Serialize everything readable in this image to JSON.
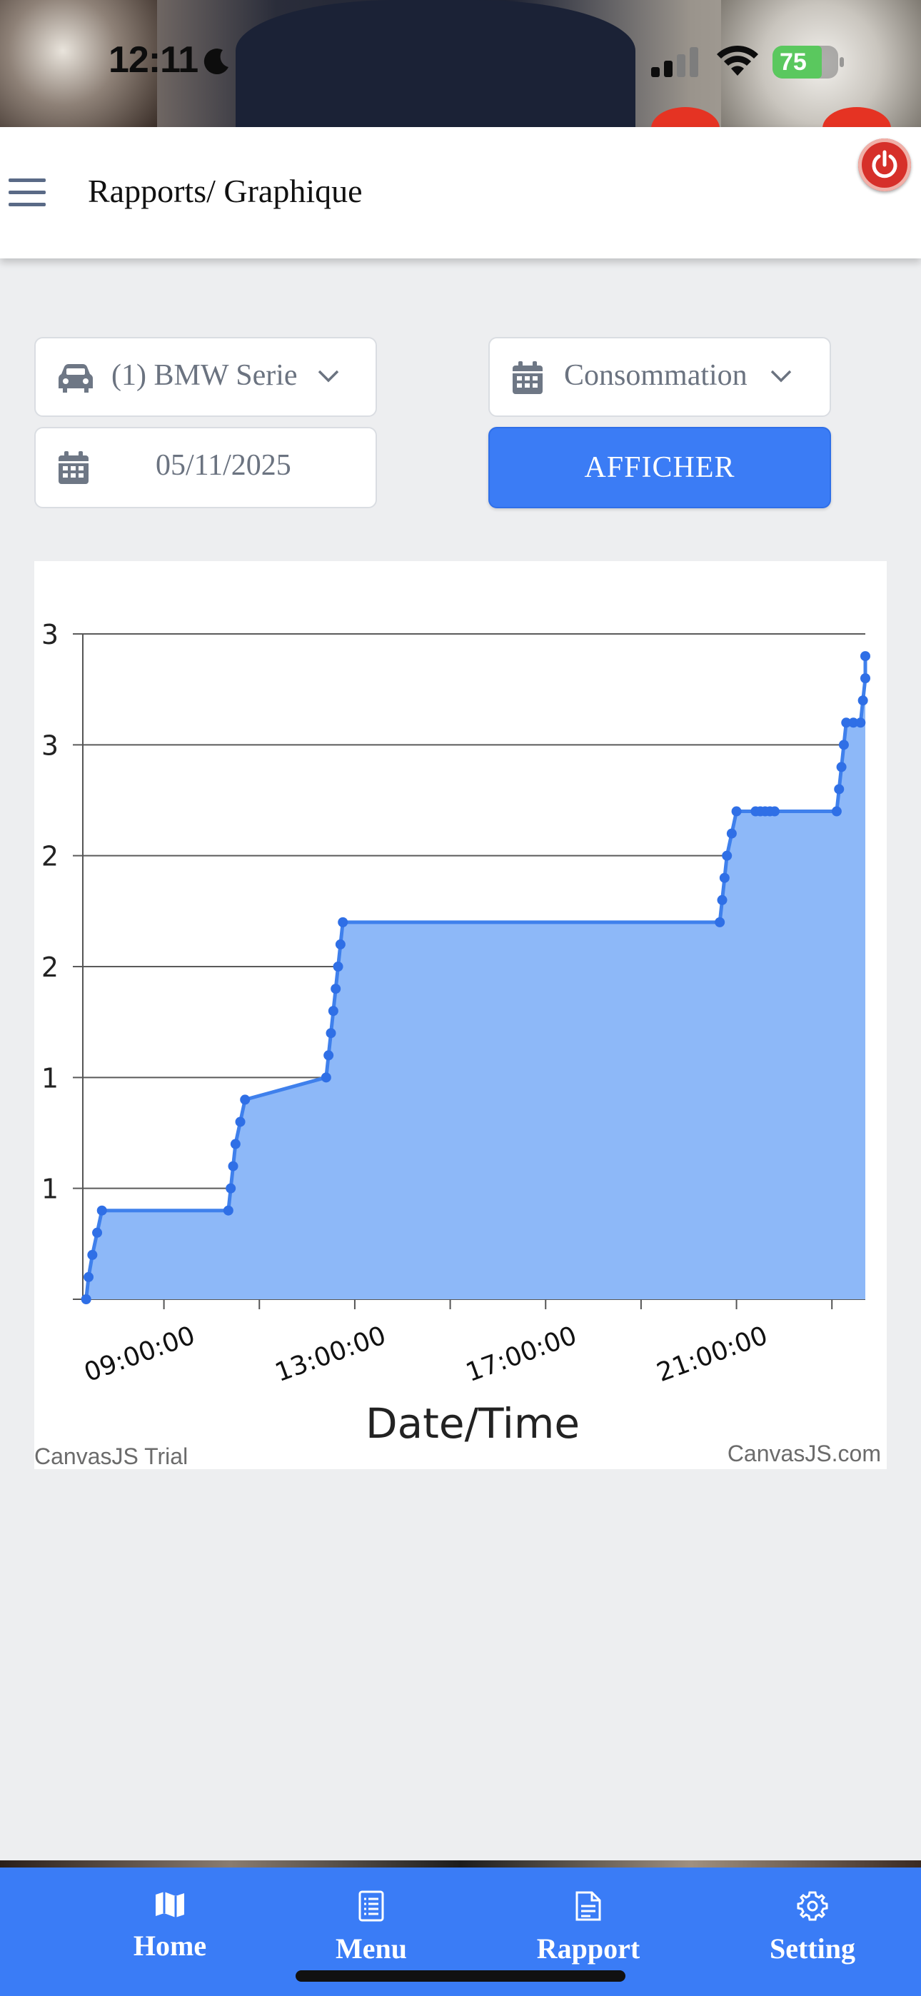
{
  "status_bar": {
    "time": "12:11",
    "battery": "75",
    "icons": [
      "moon-icon",
      "signal-icon",
      "wifi-icon",
      "battery-icon"
    ]
  },
  "header": {
    "title": "Rapports/ Graphique",
    "icons": [
      "hamburger-menu-icon",
      "power-icon"
    ]
  },
  "filters": {
    "vehicle": "(1) BMW Serie",
    "metric": "Consommation",
    "date": "05/11/2025",
    "show_button": "AFFICHER",
    "icons": [
      "car-icon",
      "calendar-icon",
      "chevron-down-icon"
    ]
  },
  "chart_watermarks": {
    "left": "CanvasJS Trial",
    "right": "CanvasJS.com"
  },
  "chart_data": {
    "type": "area",
    "step": true,
    "xlabel": "Date/Time",
    "ylabel": "",
    "x_ticks": [
      "09:00:00",
      "13:00:00",
      "17:00:00",
      "21:00:00"
    ],
    "x_range_hours": [
      7.3,
      23.7
    ],
    "y_tick_labels": [
      "1",
      "1",
      "2",
      "2",
      "3",
      "3"
    ],
    "y_tick_values": [
      0.5,
      1.0,
      1.5,
      2.0,
      2.5,
      3.0
    ],
    "ylim": [
      0,
      3.0
    ],
    "grid": true,
    "colors": {
      "fill": "#8db8f8",
      "line": "#3f80ec",
      "marker": "#2f6fe6"
    },
    "points": [
      [
        7.37,
        0.0
      ],
      [
        7.42,
        0.1
      ],
      [
        7.5,
        0.2
      ],
      [
        7.6,
        0.3
      ],
      [
        7.7,
        0.4
      ],
      [
        10.35,
        0.4
      ],
      [
        10.4,
        0.5
      ],
      [
        10.45,
        0.6
      ],
      [
        10.5,
        0.7
      ],
      [
        10.6,
        0.8
      ],
      [
        10.7,
        0.9
      ],
      [
        12.4,
        1.0
      ],
      [
        12.45,
        1.1
      ],
      [
        12.5,
        1.2
      ],
      [
        12.55,
        1.3
      ],
      [
        12.6,
        1.4
      ],
      [
        12.65,
        1.5
      ],
      [
        12.7,
        1.6
      ],
      [
        12.75,
        1.7
      ],
      [
        20.65,
        1.7
      ],
      [
        20.7,
        1.8
      ],
      [
        20.75,
        1.9
      ],
      [
        20.8,
        2.0
      ],
      [
        20.9,
        2.1
      ],
      [
        21.0,
        2.2
      ],
      [
        21.4,
        2.2
      ],
      [
        21.5,
        2.2
      ],
      [
        21.6,
        2.2
      ],
      [
        21.7,
        2.2
      ],
      [
        21.8,
        2.2
      ],
      [
        23.1,
        2.2
      ],
      [
        23.15,
        2.3
      ],
      [
        23.2,
        2.4
      ],
      [
        23.25,
        2.5
      ],
      [
        23.3,
        2.6
      ],
      [
        23.45,
        2.6
      ],
      [
        23.6,
        2.6
      ],
      [
        23.65,
        2.7
      ],
      [
        23.7,
        2.8
      ],
      [
        23.7,
        2.9
      ]
    ]
  },
  "bottom_nav": {
    "items": [
      {
        "label": "Home",
        "icon": "map-icon"
      },
      {
        "label": "Menu",
        "icon": "list-document-icon"
      },
      {
        "label": "Rapport",
        "icon": "report-document-icon"
      },
      {
        "label": "Setting",
        "icon": "gear-icon"
      }
    ]
  }
}
